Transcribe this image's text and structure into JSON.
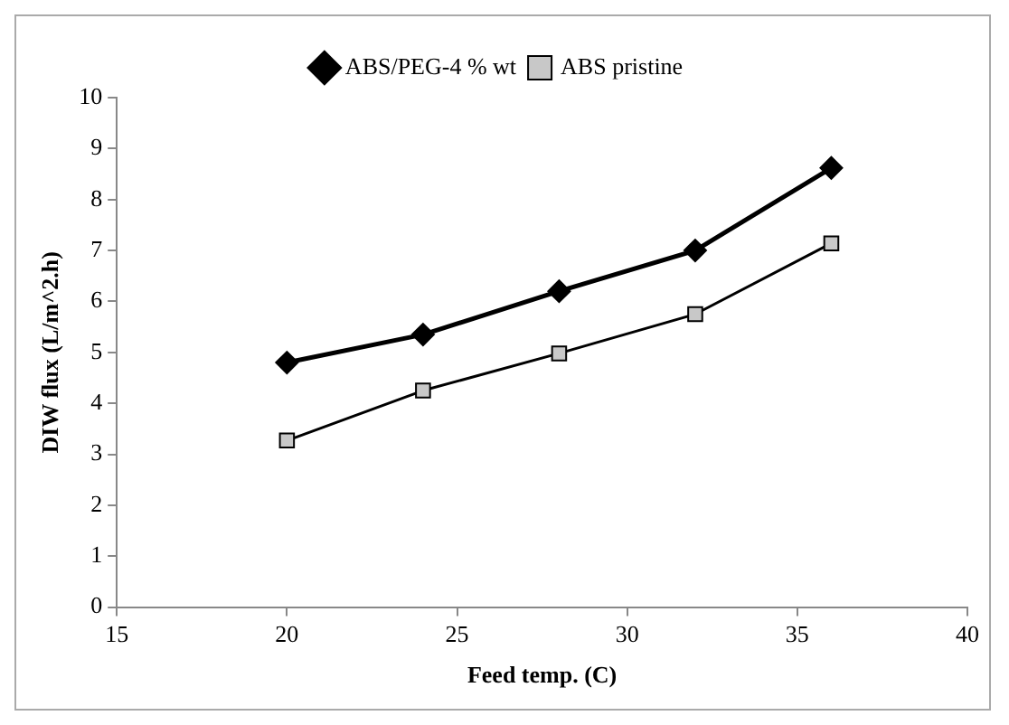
{
  "chart_data": {
    "type": "line",
    "xlabel": "Feed temp. (C)",
    "ylabel": "DIW flux (L/m^2.h)",
    "x": [
      20,
      24,
      28,
      32,
      36
    ],
    "series": [
      {
        "name": "ABS/PEG-4 % wt",
        "color": "#000000",
        "marker": "diamond",
        "values": [
          4.8,
          5.35,
          6.2,
          7.0,
          8.62
        ]
      },
      {
        "name": "ABS pristine",
        "color": "#c8c8c8",
        "marker": "square",
        "values": [
          3.27,
          4.25,
          4.98,
          5.75,
          7.14
        ]
      }
    ],
    "xlim": [
      15,
      40
    ],
    "xticks": [
      15,
      20,
      25,
      30,
      35,
      40
    ],
    "ylim": [
      0,
      10
    ],
    "yticks": [
      0,
      1,
      2,
      3,
      4,
      5,
      6,
      7,
      8,
      9,
      10
    ],
    "grid": false,
    "legend": "top"
  }
}
